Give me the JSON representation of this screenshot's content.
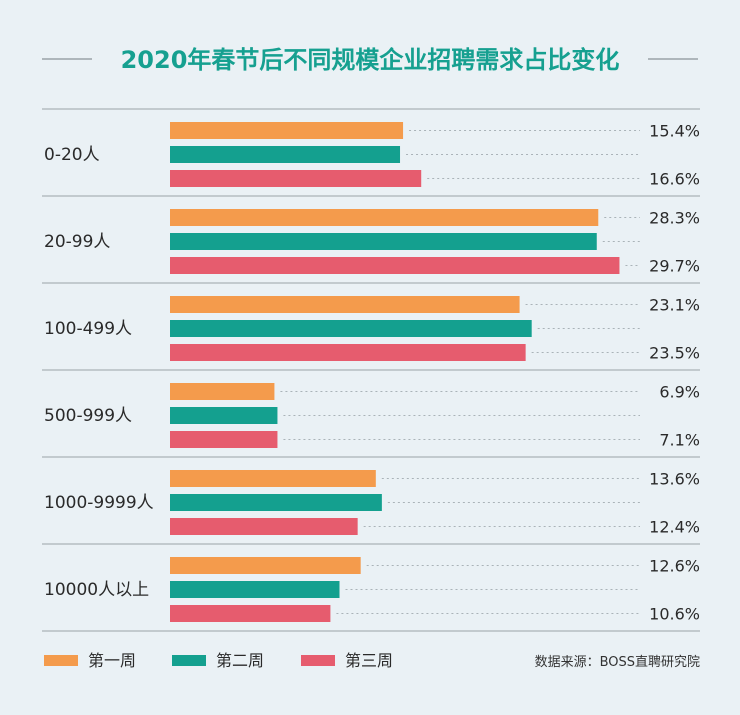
{
  "chart_data": {
    "type": "bar",
    "orientation": "horizontal",
    "title": "2020年春节后不同规模企业招聘需求占比变化",
    "categories": [
      "0-20人",
      "20-99人",
      "100-499人",
      "500-999人",
      "1000-9999人",
      "10000人以上"
    ],
    "series": [
      {
        "name": "第一周",
        "values": [
          15.4,
          28.3,
          23.1,
          6.9,
          13.6,
          12.6
        ]
      },
      {
        "name": "第二周",
        "values": [
          15.2,
          28.2,
          23.9,
          7.1,
          14.0,
          11.2
        ]
      },
      {
        "name": "第三周",
        "values": [
          16.6,
          29.7,
          23.5,
          7.1,
          12.4,
          10.6
        ]
      }
    ],
    "data_labels": [
      [
        "15.4%",
        "16.6%"
      ],
      [
        "28.3%",
        "29.7%"
      ],
      [
        "23.1%",
        "23.5%"
      ],
      [
        "6.9%",
        "7.1%"
      ],
      [
        "13.6%",
        "12.4%"
      ],
      [
        "12.6%",
        "10.6%"
      ]
    ],
    "xlim": [
      0,
      30
    ],
    "legend_position": "bottom-left",
    "source": "数据来源：BOSS直聘研究院"
  },
  "colors": {
    "series": [
      "#f49b4c",
      "#14a08f",
      "#e65c6e"
    ],
    "title": "#16a090",
    "background": "#eaf1f5",
    "divider": "#9aa3a8"
  }
}
